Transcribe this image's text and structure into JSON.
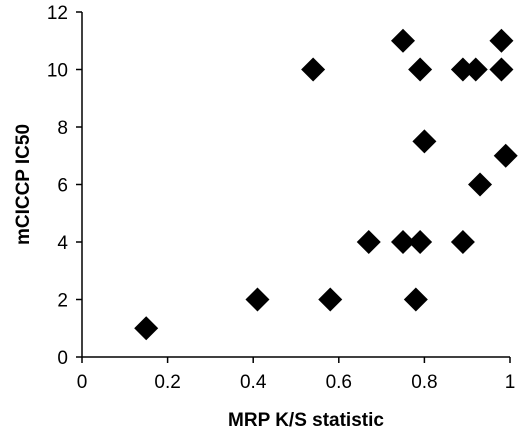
{
  "chart_data": {
    "type": "scatter",
    "title": "",
    "xlabel": "MRP K/S statistic",
    "ylabel": "mCICCP IC50",
    "xlim": [
      0,
      1
    ],
    "ylim": [
      0,
      12
    ],
    "x_ticks": [
      0,
      0.2,
      0.4,
      0.6,
      0.8,
      1
    ],
    "x_tick_labels": [
      "0",
      "0.2",
      "0.4",
      "0.6",
      "0.8",
      "1"
    ],
    "y_ticks": [
      0,
      2,
      4,
      6,
      8,
      10,
      12
    ],
    "y_tick_labels": [
      "0",
      "2",
      "4",
      "6",
      "8",
      "10",
      "12"
    ],
    "grid": false,
    "legend": "none",
    "marker": "diamond",
    "marker_color": "#000000",
    "series": [
      {
        "points": [
          {
            "x": 0.15,
            "y": 1
          },
          {
            "x": 0.41,
            "y": 2
          },
          {
            "x": 0.58,
            "y": 2
          },
          {
            "x": 0.78,
            "y": 2
          },
          {
            "x": 0.67,
            "y": 4
          },
          {
            "x": 0.75,
            "y": 4
          },
          {
            "x": 0.79,
            "y": 4
          },
          {
            "x": 0.89,
            "y": 4
          },
          {
            "x": 0.93,
            "y": 6
          },
          {
            "x": 0.99,
            "y": 7
          },
          {
            "x": 0.8,
            "y": 7.5
          },
          {
            "x": 0.54,
            "y": 10
          },
          {
            "x": 0.79,
            "y": 10
          },
          {
            "x": 0.89,
            "y": 10
          },
          {
            "x": 0.92,
            "y": 10
          },
          {
            "x": 0.98,
            "y": 10
          },
          {
            "x": 0.75,
            "y": 11
          },
          {
            "x": 0.98,
            "y": 11
          }
        ]
      }
    ]
  }
}
